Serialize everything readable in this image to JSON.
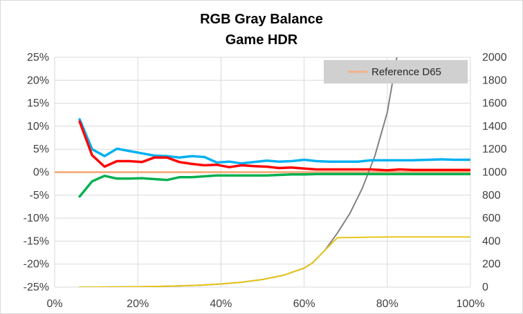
{
  "chart_data": {
    "type": "line",
    "title": "RGB Gray Balance",
    "subtitle": "Game HDR",
    "xlabel": "",
    "ylabel": "",
    "xlim": [
      0,
      100
    ],
    "ylim": [
      -25,
      25
    ],
    "y2lim": [
      0,
      2000
    ],
    "grid": true,
    "legend_position": "top-right",
    "x_tick_labels": [
      "0%",
      "20%",
      "40%",
      "60%",
      "80%",
      "100%"
    ],
    "y_tick_labels": [
      "25%",
      "20%",
      "15%",
      "10%",
      "5%",
      "0%",
      "-5%",
      "-10%",
      "-15%",
      "-20%",
      "-25%"
    ],
    "y2_tick_labels": [
      "2000",
      "1800",
      "1600",
      "1400",
      "1200",
      "1000",
      "800",
      "600",
      "400",
      "200",
      "0"
    ],
    "reference": {
      "name": "Reference D65",
      "value": 0,
      "color": "#f4b183"
    },
    "series": [
      {
        "color": "#00b0f0",
        "axis": "left",
        "x": [
          6,
          9,
          12,
          15,
          18,
          21,
          24,
          27,
          30,
          33,
          36,
          39,
          42,
          45,
          48,
          51,
          54,
          57,
          60,
          63,
          66,
          70,
          73,
          76,
          80,
          83,
          86,
          90,
          93,
          96,
          100
        ],
        "y": [
          11.5,
          5,
          3.5,
          5.1,
          4.6,
          4.1,
          3.6,
          3.5,
          3.2,
          3.5,
          3.3,
          2.1,
          2.3,
          1.9,
          2.2,
          2.5,
          2.3,
          2.4,
          2.7,
          2.4,
          2.3,
          2.3,
          2.3,
          2.6,
          2.6,
          2.6,
          2.6,
          2.7,
          2.8,
          2.7,
          2.7
        ]
      },
      {
        "color": "#ff0000",
        "axis": "left",
        "x": [
          6,
          9,
          12,
          15,
          18,
          21,
          24,
          27,
          30,
          33,
          36,
          39,
          42,
          45,
          48,
          51,
          54,
          57,
          60,
          63,
          66,
          70,
          73,
          76,
          80,
          83,
          86,
          90,
          93,
          96,
          100
        ],
        "y": [
          11,
          3.7,
          1.2,
          2.4,
          2.4,
          2.2,
          3.2,
          3.2,
          2.2,
          1.8,
          1.5,
          1.6,
          1.1,
          1.5,
          1.3,
          1.2,
          0.9,
          1,
          0.8,
          0.6,
          0.6,
          0.6,
          0.6,
          0.6,
          0.4,
          0.6,
          0.5,
          0.5,
          0.5,
          0.5,
          0.5
        ]
      },
      {
        "color": "#00b050",
        "axis": "left",
        "x": [
          6,
          9,
          12,
          15,
          18,
          21,
          24,
          27,
          30,
          33,
          36,
          39,
          42,
          45,
          48,
          51,
          54,
          57,
          60,
          63,
          66,
          70,
          73,
          76,
          80,
          83,
          86,
          90,
          93,
          96,
          100
        ],
        "y": [
          -5.3,
          -2,
          -0.8,
          -1.4,
          -1.4,
          -1.3,
          -1.5,
          -1.7,
          -1.1,
          -1.1,
          -0.9,
          -0.7,
          -0.7,
          -0.7,
          -0.7,
          -0.7,
          -0.6,
          -0.5,
          -0.5,
          -0.4,
          -0.4,
          -0.4,
          -0.4,
          -0.4,
          -0.4,
          -0.4,
          -0.4,
          -0.4,
          -0.4,
          -0.4,
          -0.4
        ]
      },
      {
        "color": "#808080",
        "axis": "right",
        "x": [
          6,
          10,
          15,
          20,
          25,
          30,
          35,
          40,
          45,
          50,
          55,
          60,
          62,
          65,
          68,
          71,
          74,
          77,
          80,
          82.3
        ],
        "y": [
          0,
          0,
          1,
          3,
          6,
          10,
          17,
          27,
          42,
          66,
          103,
          165,
          210,
          320,
          470,
          640,
          860,
          1140,
          1520,
          2000
        ]
      },
      {
        "color": "#e6c619",
        "axis": "right",
        "x": [
          6,
          10,
          15,
          20,
          25,
          30,
          35,
          40,
          45,
          50,
          55,
          60,
          62,
          65,
          68,
          72,
          76,
          80,
          85,
          90,
          95,
          100
        ],
        "y": [
          0,
          0,
          1,
          3,
          6,
          10,
          17,
          27,
          42,
          66,
          103,
          165,
          210,
          320,
          430,
          432,
          435,
          436,
          436,
          436,
          436,
          436
        ]
      }
    ]
  }
}
